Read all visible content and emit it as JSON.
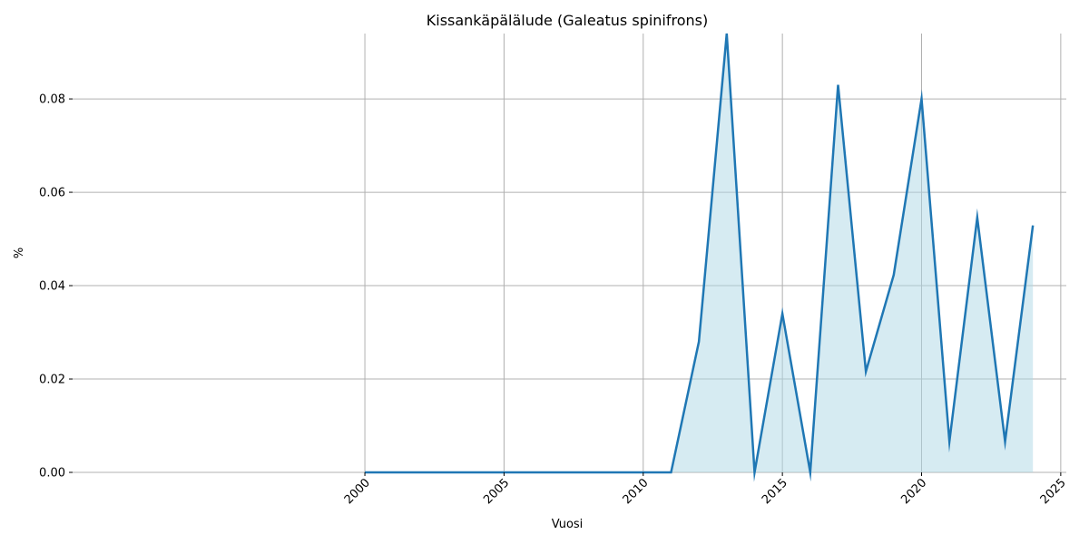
{
  "chart_data": {
    "type": "area",
    "title": "Kissankäpälälude (Galeatus spinifrons)",
    "xlabel": "Vuosi",
    "ylabel": "%",
    "xlim": [
      1989.5,
      2025.2
    ],
    "ylim": [
      0,
      0.094
    ],
    "xticks": [
      2000,
      2005,
      2010,
      2015,
      2020,
      2025
    ],
    "xtick_labels": [
      "2000",
      "2005",
      "2010",
      "2015",
      "2020",
      "2025"
    ],
    "yticks": [
      0.0,
      0.02,
      0.04,
      0.06,
      0.08
    ],
    "ytick_labels": [
      "0.00",
      "0.02",
      "0.04",
      "0.06",
      "0.08"
    ],
    "grid": true,
    "legend": "none",
    "line_color": "#1f77b4",
    "fill_color": "#add8e6",
    "series": [
      {
        "x": [
          2000,
          2001,
          2002,
          2003,
          2004,
          2005,
          2006,
          2007,
          2008,
          2009,
          2010,
          2011,
          2012,
          2013,
          2014,
          2015,
          2016,
          2017,
          2018,
          2019,
          2020,
          2021,
          2022,
          2023,
          2024
        ],
        "values": [
          0,
          0,
          0,
          0,
          0,
          0,
          0,
          0,
          0,
          0,
          0,
          0,
          0.028,
          0.094,
          0,
          0.034,
          0,
          0.083,
          0.0216,
          0.0423,
          0.08,
          0.0066,
          0.0546,
          0.0066,
          0.0529
        ]
      }
    ]
  }
}
